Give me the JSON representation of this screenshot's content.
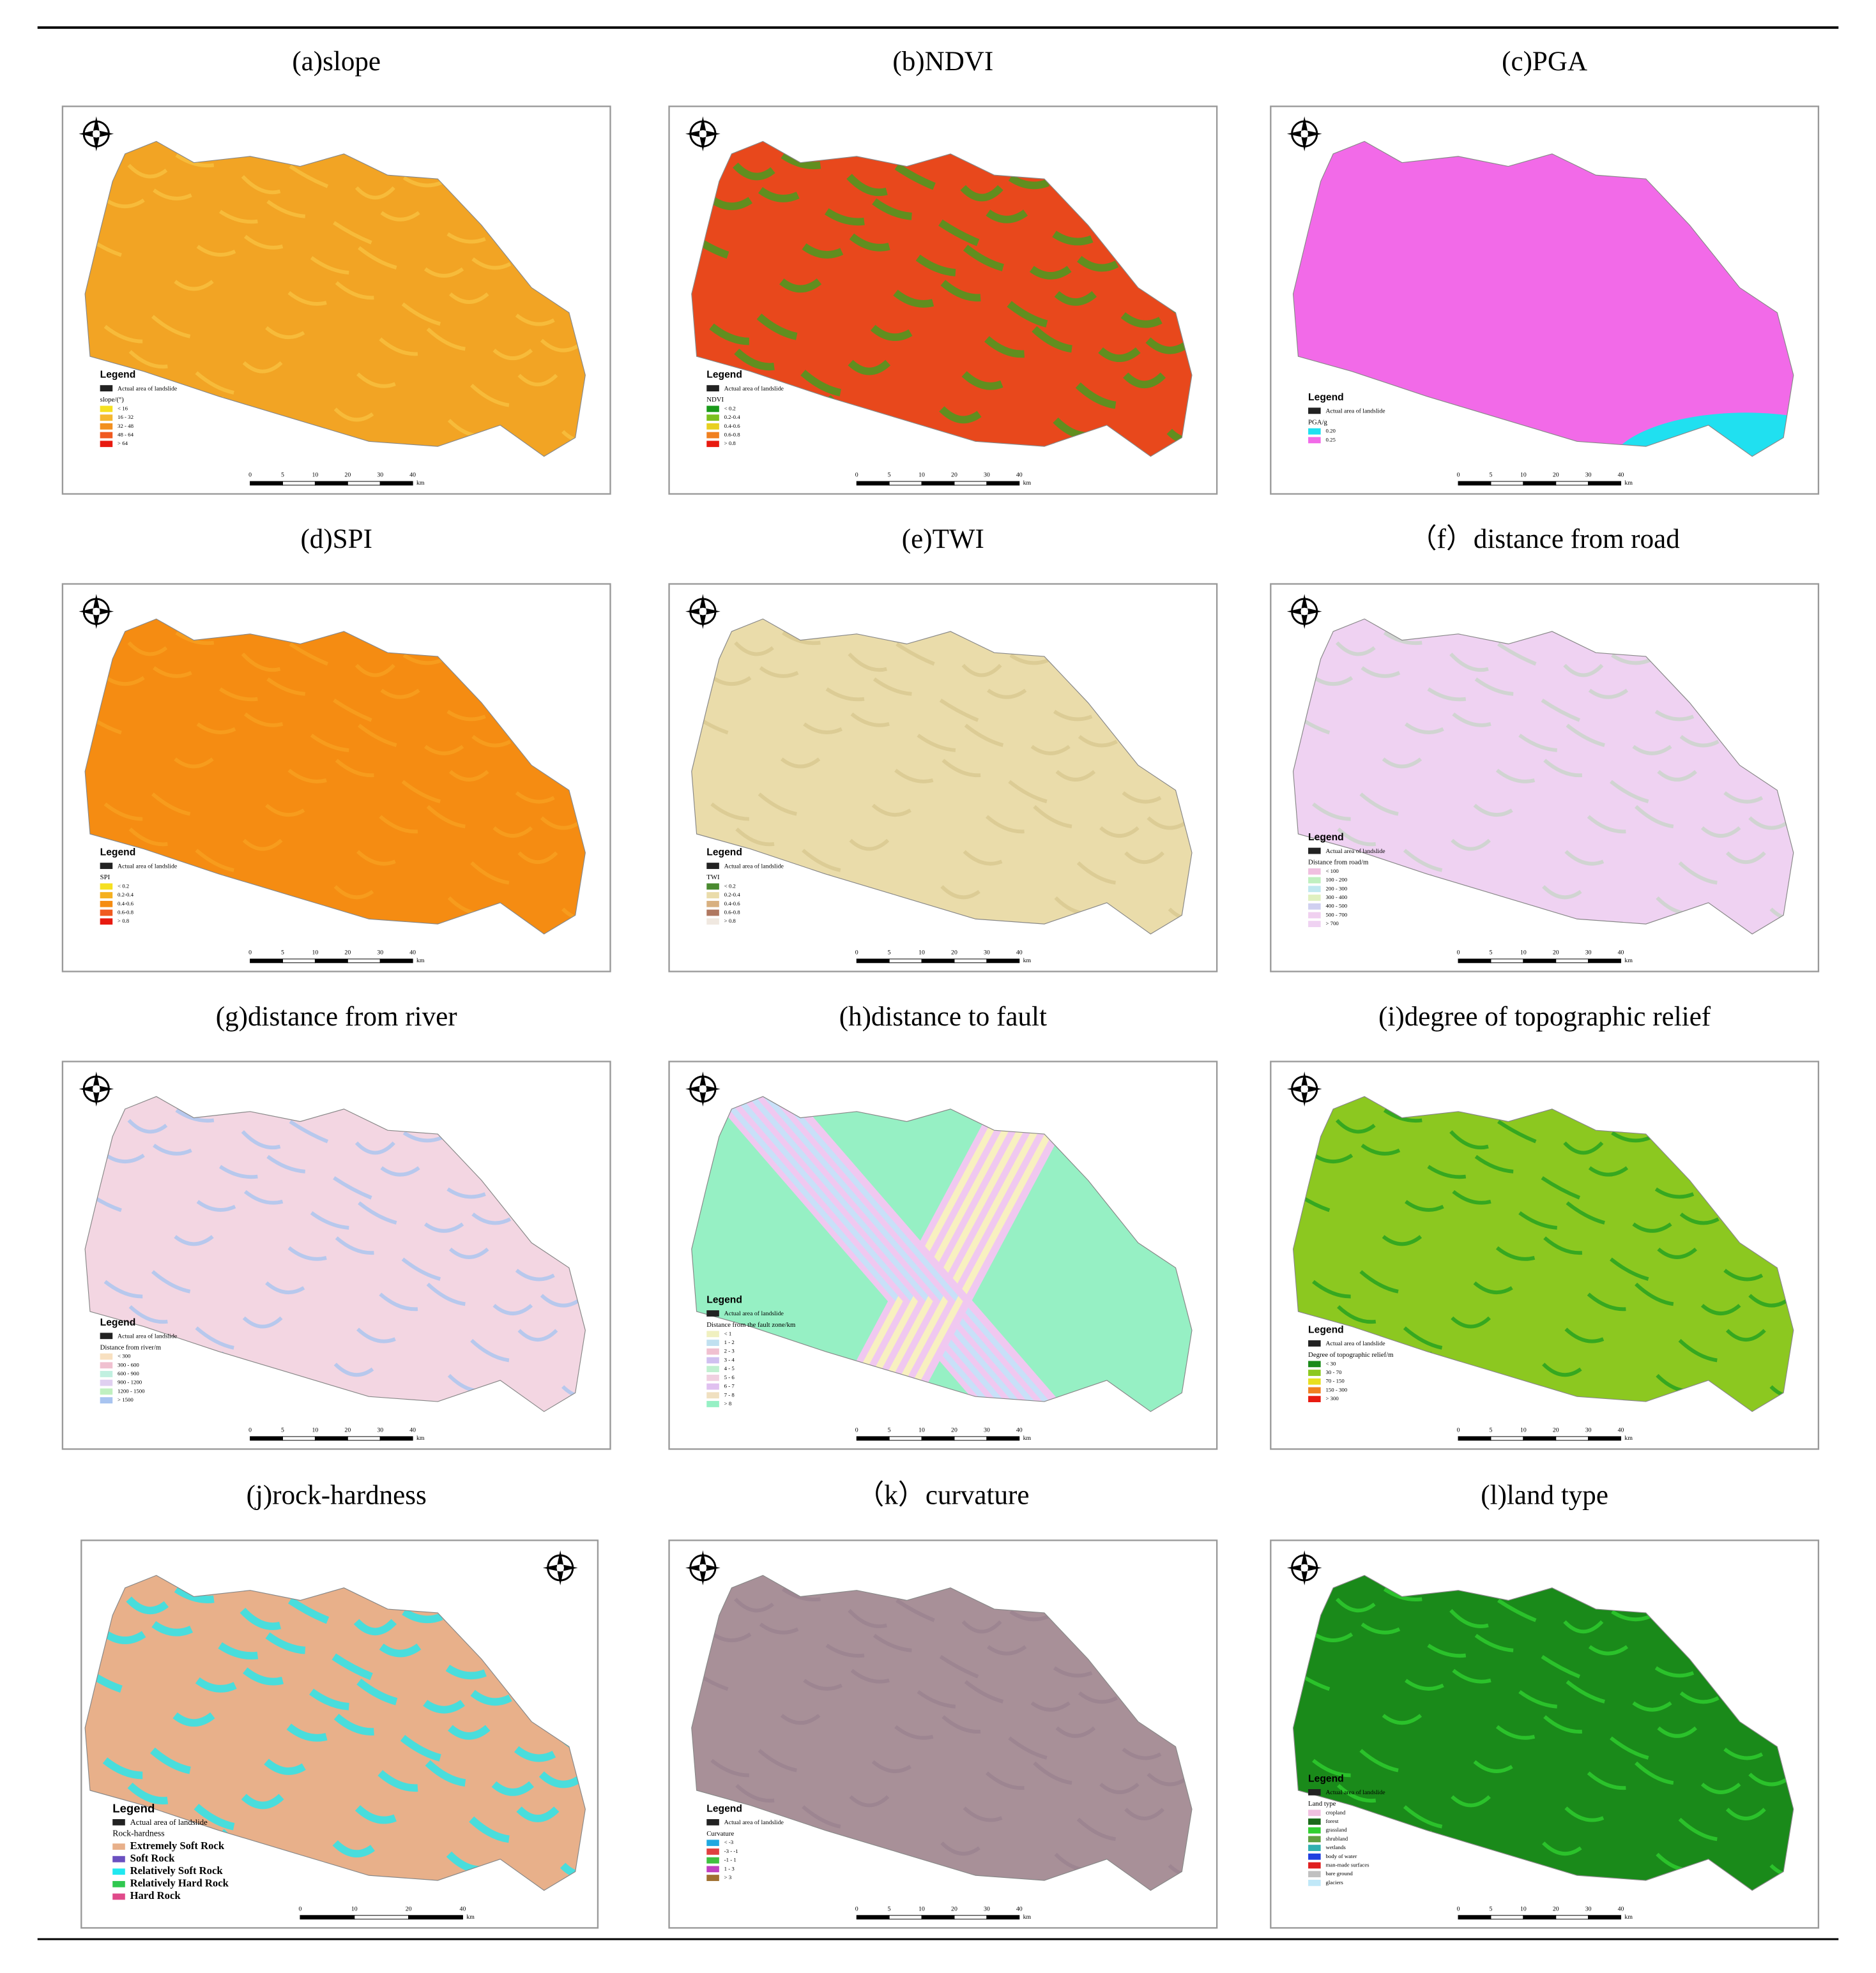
{
  "panels": [
    {
      "title": "(a)slope",
      "fill": "#f2a424",
      "accent": "#f7c040",
      "legend": {
        "title": "Legend",
        "landslide": "Actual area of landslide",
        "heading": "slope/(°)",
        "items": [
          {
            "label": "< 16",
            "color": "#f5e020"
          },
          {
            "label": "16 - 32",
            "color": "#f5b830"
          },
          {
            "label": "32 - 48",
            "color": "#f29020"
          },
          {
            "label": "48 - 64",
            "color": "#f05a20"
          },
          {
            "label": "> 64",
            "color": "#e81a10"
          }
        ]
      },
      "scale": [
        "0",
        "5",
        "10",
        "20",
        "30",
        "40"
      ],
      "unit": "km"
    },
    {
      "title": "(b)NDVI",
      "fill": "#e8481c",
      "accent": "#3fa020",
      "legend": {
        "title": "Legend",
        "landslide": "Actual area of landslide",
        "heading": "NDVI",
        "items": [
          {
            "label": "< 0.2",
            "color": "#1a9a1a"
          },
          {
            "label": "0.2-0.4",
            "color": "#7cc020"
          },
          {
            "label": "0.4-0.6",
            "color": "#e8d020"
          },
          {
            "label": "0.6-0.8",
            "color": "#f08020"
          },
          {
            "label": "> 0.8",
            "color": "#e81a10"
          }
        ]
      },
      "scale": [
        "0",
        "5",
        "10",
        "20",
        "30",
        "40"
      ],
      "unit": "km"
    },
    {
      "title": "(c)PGA",
      "fill": "#f26ae8",
      "accent": "#20e0f0",
      "legend": {
        "title": "Legend",
        "landslide": "Actual area of landslide",
        "heading": "PGA/g",
        "items": [
          {
            "label": "0.20",
            "color": "#20e0f0"
          },
          {
            "label": "0.25",
            "color": "#f26ae8"
          }
        ]
      },
      "scale": [
        "0",
        "5",
        "10",
        "20",
        "30",
        "40"
      ],
      "unit": "km"
    },
    {
      "title": "(d)SPI",
      "fill": "#f58c12",
      "accent": "#f8a020",
      "legend": {
        "title": "Legend",
        "landslide": "Actual area of landslide",
        "heading": "SPI",
        "items": [
          {
            "label": "< 0.2",
            "color": "#f5e020"
          },
          {
            "label": "0.2-0.4",
            "color": "#f5b020"
          },
          {
            "label": "0.4-0.6",
            "color": "#f58c12"
          },
          {
            "label": "0.6-0.8",
            "color": "#f05a20"
          },
          {
            "label": "> 0.8",
            "color": "#e81a10"
          }
        ]
      },
      "scale": [
        "0",
        "5",
        "10",
        "20",
        "30",
        "40"
      ],
      "unit": "km"
    },
    {
      "title": "(e)TWI",
      "fill": "#eadcaa",
      "accent": "#d8c890",
      "legend": {
        "title": "Legend",
        "landslide": "Actual area of landslide",
        "heading": "TWI",
        "items": [
          {
            "label": "< 0.2",
            "color": "#4a8a30"
          },
          {
            "label": "0.2-0.4",
            "color": "#eadcaa"
          },
          {
            "label": "0.4-0.6",
            "color": "#d8b080"
          },
          {
            "label": "0.6-0.8",
            "color": "#b07860"
          },
          {
            "label": "> 0.8",
            "color": "#f0e8e0"
          }
        ]
      },
      "scale": [
        "0",
        "5",
        "10",
        "20",
        "30",
        "40"
      ],
      "unit": "km"
    },
    {
      "title": "（f）distance from road",
      "fill": "#efd2f2",
      "accent": "#c8d4c8",
      "legend": {
        "title": "Legend",
        "landslide": "Actual area of landslide",
        "heading": "Distance from road/m",
        "items": [
          {
            "label": "< 100",
            "color": "#f0c0e0"
          },
          {
            "label": "100 - 200",
            "color": "#c0f0c0"
          },
          {
            "label": "200 - 300",
            "color": "#c0e8f0"
          },
          {
            "label": "300 - 400",
            "color": "#e0f0c0"
          },
          {
            "label": "400 - 500",
            "color": "#d0d0f0"
          },
          {
            "label": "500 - 700",
            "color": "#f0d0f0"
          },
          {
            "label": "> 700",
            "color": "#efd2f2"
          }
        ]
      },
      "scale": [
        "0",
        "5",
        "10",
        "20",
        "30",
        "40"
      ],
      "unit": "km"
    },
    {
      "title": "(g)distance from river",
      "fill": "#f3d6e2",
      "accent": "#a8c4f0",
      "legend": {
        "title": "Legend",
        "landslide": "Actual area of landslide",
        "heading": "Distance from river/m",
        "items": [
          {
            "label": "< 300",
            "color": "#f8e0c0"
          },
          {
            "label": "300 - 600",
            "color": "#f0c0d0"
          },
          {
            "label": "600 - 900",
            "color": "#c0f0e0"
          },
          {
            "label": "900 - 1200",
            "color": "#e0d0f0"
          },
          {
            "label": "1200 - 1500",
            "color": "#c0f0c0"
          },
          {
            "label": "> 1500",
            "color": "#a8c4f0"
          }
        ]
      },
      "scale": [
        "0",
        "5",
        "10",
        "20",
        "30",
        "40"
      ],
      "unit": "km"
    },
    {
      "title": "(h)distance to fault",
      "fill": "#96f0c4",
      "accent": "#f0c8f0",
      "legend": {
        "title": "Legend",
        "landslide": "Actual area of landslide",
        "heading": "Distance from the fault zone/km",
        "items": [
          {
            "label": "< 1",
            "color": "#f0f0c0"
          },
          {
            "label": "1 - 2",
            "color": "#c0e0f0"
          },
          {
            "label": "2 - 3",
            "color": "#f0c0d0"
          },
          {
            "label": "3 - 4",
            "color": "#d0c0f0"
          },
          {
            "label": "4 - 5",
            "color": "#c0f0d0"
          },
          {
            "label": "5 - 6",
            "color": "#f0d0e0"
          },
          {
            "label": "6 - 7",
            "color": "#e0c0f0"
          },
          {
            "label": "7 - 8",
            "color": "#f0e0c0"
          },
          {
            "label": "> 8",
            "color": "#96f0c4"
          }
        ]
      },
      "scale": [
        "0",
        "5",
        "10",
        "20",
        "30",
        "40"
      ],
      "unit": "km"
    },
    {
      "title": "(i)degree of topographic relief",
      "fill": "#8cc820",
      "accent": "#20a020",
      "legend": {
        "title": "Legend",
        "landslide": "Actual area of landslide",
        "heading": "Degree of topographic relief/m",
        "items": [
          {
            "label": "< 30",
            "color": "#1a8a1a"
          },
          {
            "label": "30 - 70",
            "color": "#8cc820"
          },
          {
            "label": "70 - 150",
            "color": "#e8e020"
          },
          {
            "label": "150 - 300",
            "color": "#f08020"
          },
          {
            "label": "> 300",
            "color": "#e81a10"
          }
        ]
      },
      "scale": [
        "0",
        "5",
        "10",
        "20",
        "30",
        "40"
      ],
      "unit": "km"
    },
    {
      "title": "(j)rock-hardness",
      "fill": "#e8b08a",
      "accent": "#20e8f0",
      "legend": {
        "title": "Legend",
        "landslide": "Actual area of landslide",
        "heading": "Rock-hardness",
        "items": [
          {
            "label": "Extremely Soft Rock",
            "color": "#e8b08a"
          },
          {
            "label": "Soft Rock",
            "color": "#6a50c0"
          },
          {
            "label": "Relatively Soft Rock",
            "color": "#20e8f0"
          },
          {
            "label": "Relatively Hard Rock",
            "color": "#30c850"
          },
          {
            "label": "Hard Rock",
            "color": "#e04a8a"
          }
        ]
      },
      "scale": [
        "0",
        "10",
        "20",
        "40"
      ],
      "unit": "km"
    },
    {
      "title": "（k）curvature",
      "fill": "#a89098",
      "accent": "#9a8290",
      "legend": {
        "title": "Legend",
        "landslide": "Actual area of landslide",
        "heading": "Curvature",
        "items": [
          {
            "label": "< -3",
            "color": "#20a8e0"
          },
          {
            "label": "-3 - -1",
            "color": "#e04040"
          },
          {
            "label": "-1 - 1",
            "color": "#40c040"
          },
          {
            "label": "1 - 3",
            "color": "#c040c0"
          },
          {
            "label": "> 3",
            "color": "#a07030"
          }
        ]
      },
      "scale": [
        "0",
        "5",
        "10",
        "20",
        "30",
        "40"
      ],
      "unit": "km"
    },
    {
      "title": "(l)land type",
      "fill": "#1a8a1a",
      "accent": "#30d030",
      "legend": {
        "title": "Legend",
        "landslide": "Actual area of landslide",
        "heading": "Land type",
        "items": [
          {
            "label": "cropland",
            "color": "#f0c0e0"
          },
          {
            "label": "forest",
            "color": "#1a6a1a"
          },
          {
            "label": "grassland",
            "color": "#30d030"
          },
          {
            "label": "shrubland",
            "color": "#60a040"
          },
          {
            "label": "wetlands",
            "color": "#30b0b0"
          },
          {
            "label": "body of water",
            "color": "#2040e0"
          },
          {
            "label": "man-made surfaces",
            "color": "#e02020"
          },
          {
            "label": "bare ground",
            "color": "#c0c0c0"
          },
          {
            "label": "glaciers",
            "color": "#c0e8f8"
          }
        ]
      },
      "scale": [
        "0",
        "5",
        "10",
        "20",
        "30",
        "40"
      ],
      "unit": "km"
    }
  ]
}
